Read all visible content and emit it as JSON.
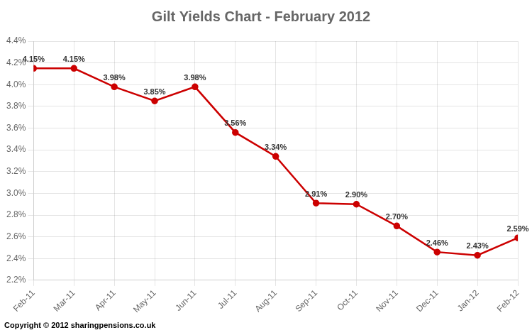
{
  "chart_data": {
    "type": "line",
    "title": "Gilt Yields Chart - February 2012",
    "annotations": [
      "Copyright © 2012 sharingpensions.co.uk"
    ],
    "categories": [
      "Feb-11",
      "Mar-11",
      "Apr-11",
      "May-11",
      "Jun-11",
      "Jul-11",
      "Aug-11",
      "Sep-11",
      "Oct-11",
      "Nov-11",
      "Dec-11",
      "Jan-12",
      "Feb-12"
    ],
    "values": [
      4.15,
      4.15,
      3.98,
      3.85,
      3.98,
      3.56,
      3.34,
      2.91,
      2.9,
      2.7,
      2.46,
      2.43,
      2.59
    ],
    "value_labels": [
      "4.15%",
      "4.15%",
      "3.98%",
      "3.85%",
      "3.98%",
      "3.56%",
      "3.34%",
      "2.91%",
      "2.90%",
      "2.70%",
      "2.46%",
      "2.43%",
      "2.59%"
    ],
    "color": "#cc0000",
    "marker": "circle",
    "data_labels": true,
    "ylim": [
      2.2,
      4.4
    ],
    "yticks": [
      {
        "value": 2.2,
        "label": "2.2%"
      },
      {
        "value": 2.4,
        "label": "2.4%"
      },
      {
        "value": 2.6,
        "label": "2.6%"
      },
      {
        "value": 2.8,
        "label": "2.8%"
      },
      {
        "value": 3.0,
        "label": "3.0%"
      },
      {
        "value": 3.2,
        "label": "3.2%"
      },
      {
        "value": 3.4,
        "label": "3.4%"
      },
      {
        "value": 3.6,
        "label": "3.6%"
      },
      {
        "value": 3.8,
        "label": "3.8%"
      },
      {
        "value": 4.0,
        "label": "4.0%"
      },
      {
        "value": 4.2,
        "label": "4.2%"
      },
      {
        "value": 4.4,
        "label": "4.4%"
      }
    ],
    "grid": true
  }
}
